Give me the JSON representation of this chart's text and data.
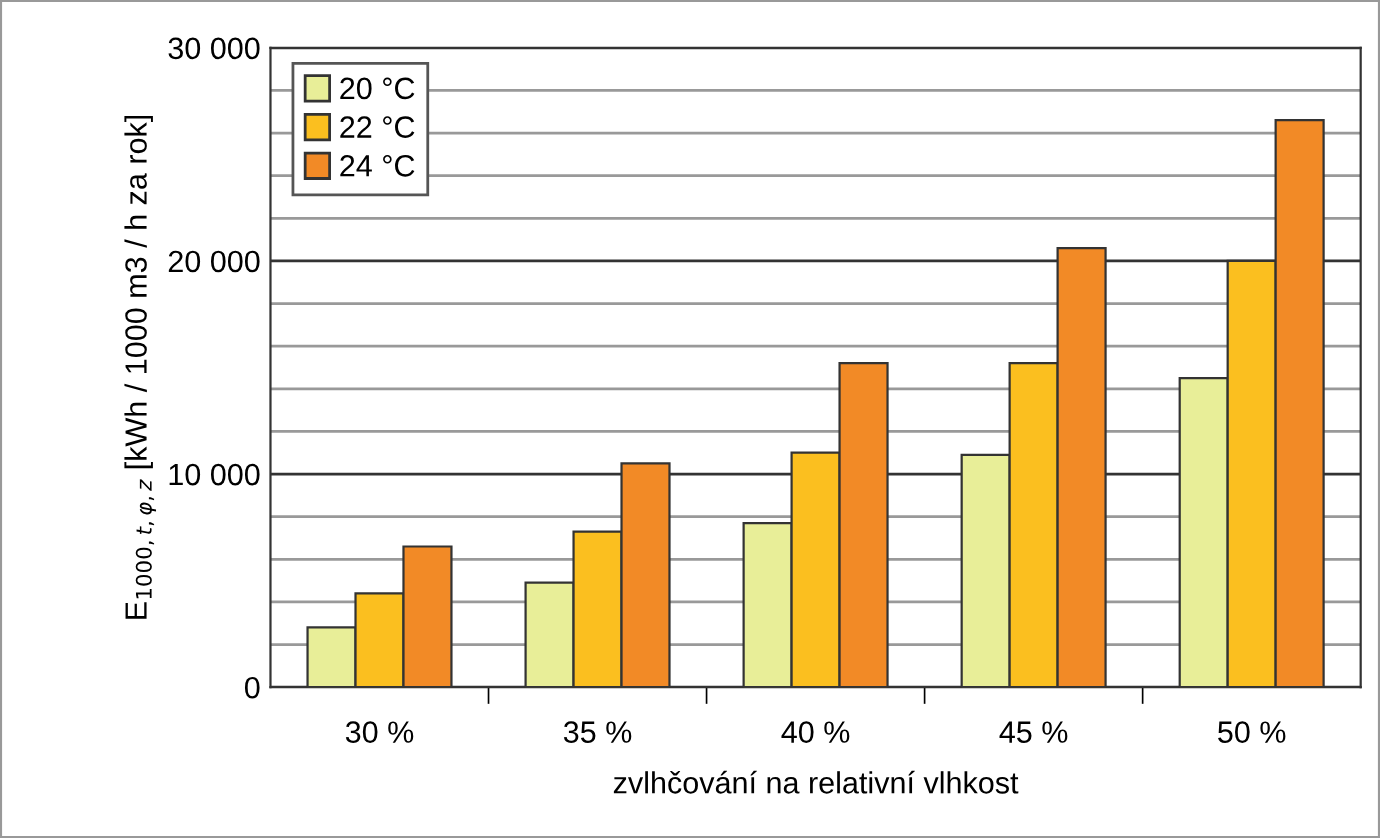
{
  "chart_data": {
    "type": "bar",
    "xlabel": "zvlhčování na relativní vlhkost",
    "ylabel": "E$_{1000,t,φ,z}$ [kWh / 1000 m3 / h za rok]",
    "categories": [
      "30 %",
      "35 %",
      "40 %",
      "45 %",
      "50 %"
    ],
    "series": [
      {
        "name": "20 °C",
        "color": "#e8ee98",
        "values": [
          2800,
          4900,
          7700,
          10900,
          14500
        ]
      },
      {
        "name": "22 °C",
        "color": "#fbbf1f",
        "values": [
          4400,
          7300,
          11000,
          15200,
          20000
        ]
      },
      {
        "name": "24 °C",
        "color": "#f28a26",
        "values": [
          6600,
          10500,
          15200,
          20600,
          26600
        ]
      }
    ],
    "ylim": [
      0,
      30000
    ],
    "yticks": [
      {
        "value": 0,
        "label": "0"
      },
      {
        "value": 2000,
        "label": null
      },
      {
        "value": 4000,
        "label": null
      },
      {
        "value": 6000,
        "label": null
      },
      {
        "value": 8000,
        "label": null
      },
      {
        "value": 10000,
        "label": "10 000"
      },
      {
        "value": 12000,
        "label": null
      },
      {
        "value": 14000,
        "label": null
      },
      {
        "value": 16000,
        "label": null
      },
      {
        "value": 18000,
        "label": null
      },
      {
        "value": 20000,
        "label": "20 000"
      },
      {
        "value": 22000,
        "label": null
      },
      {
        "value": 24000,
        "label": null
      },
      {
        "value": 26000,
        "label": null
      },
      {
        "value": 28000,
        "label": null
      },
      {
        "value": 30000,
        "label": "30 000"
      }
    ],
    "grid": "y",
    "legend": "top left"
  }
}
